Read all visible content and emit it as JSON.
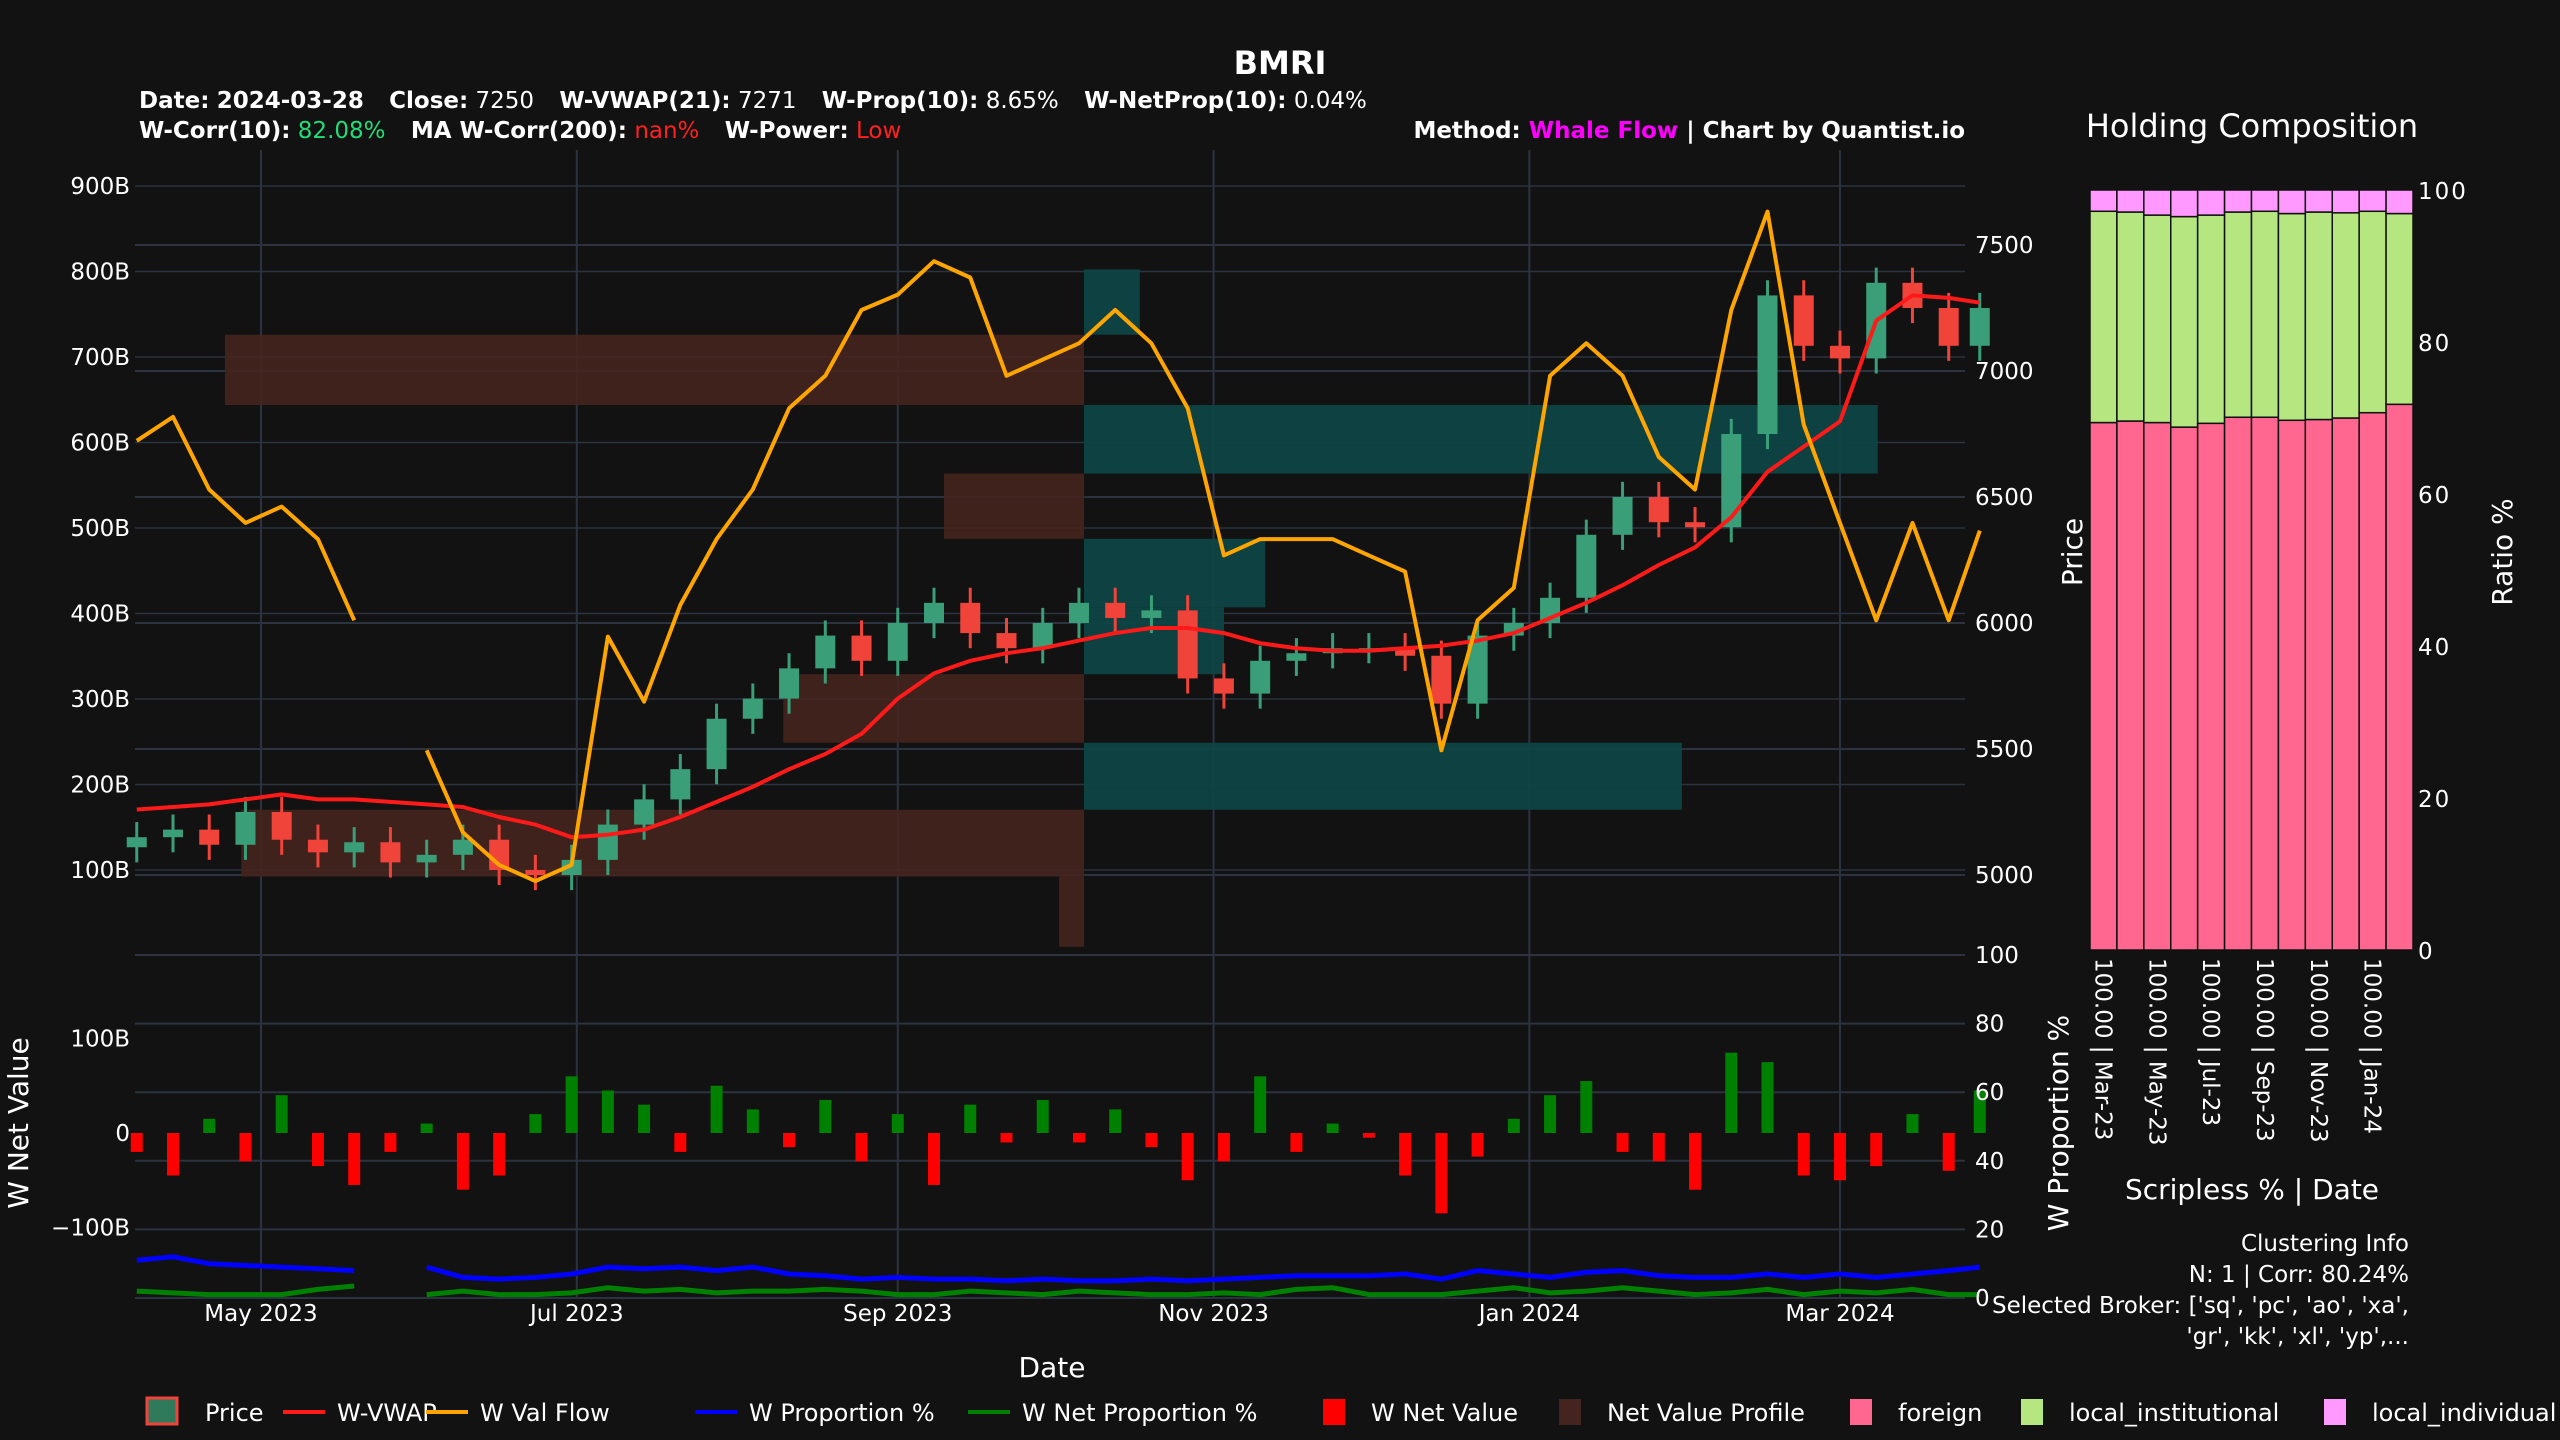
{
  "header": {
    "title": "BMRI",
    "date_label": "Date:",
    "date_value": "2024-03-28",
    "close_label": "Close:",
    "close_value": "7250",
    "vwap_label": "W-VWAP(21):",
    "vwap_value": "7271",
    "prop_label": "W-Prop(10):",
    "prop_value": "8.65%",
    "netprop_label": "W-NetProp(10):",
    "netprop_value": "0.04%",
    "corr_label": "W-Corr(10):",
    "corr_value": "82.08%",
    "macorr_label": "MA W-Corr(200):",
    "macorr_value": "nan%",
    "power_label": "W-Power:",
    "power_value": "Low",
    "method_label": "Method:",
    "method_value": "Whale Flow",
    "credit": "| Chart by Quantist.io",
    "colors": {
      "corr": "#22dd77",
      "macorr": "#ff2020",
      "power": "#ff2020",
      "method": "#ff00ff"
    }
  },
  "chart_data": [
    {
      "type": "candlestick+line",
      "panel": "price",
      "xlabel": "Date",
      "ylabel_right": "Price",
      "y_right_ticks": [
        "5000",
        "5500",
        "6000",
        "6500",
        "7000",
        "7500"
      ],
      "y_left_ticks": [
        "100B",
        "200B",
        "300B",
        "400B",
        "500B",
        "600B",
        "700B",
        "800B",
        "900B"
      ],
      "x_ticks": [
        {
          "date": "2023-05-01",
          "label": "May 2023"
        },
        {
          "date": "2023-07-01",
          "label": "Jul 2023"
        },
        {
          "date": "2023-09-01",
          "label": "Sep 2023"
        },
        {
          "date": "2023-11-01",
          "label": "Nov 2023"
        },
        {
          "date": "2024-01-01",
          "label": "Jan 2024"
        },
        {
          "date": "2024-03-01",
          "label": "Mar 2024"
        }
      ],
      "grid": true,
      "dates": [
        "2023-04-07",
        "2023-04-14",
        "2023-04-21",
        "2023-04-28",
        "2023-05-05",
        "2023-05-12",
        "2023-05-19",
        "2023-05-26",
        "2023-06-02",
        "2023-06-09",
        "2023-06-16",
        "2023-06-23",
        "2023-06-30",
        "2023-07-07",
        "2023-07-14",
        "2023-07-21",
        "2023-07-28",
        "2023-08-04",
        "2023-08-11",
        "2023-08-18",
        "2023-08-25",
        "2023-09-01",
        "2023-09-08",
        "2023-09-15",
        "2023-09-22",
        "2023-09-29",
        "2023-10-06",
        "2023-10-13",
        "2023-10-20",
        "2023-10-27",
        "2023-11-03",
        "2023-11-10",
        "2023-11-17",
        "2023-11-24",
        "2023-12-01",
        "2023-12-08",
        "2023-12-15",
        "2023-12-22",
        "2023-12-29",
        "2024-01-05",
        "2024-01-12",
        "2024-01-19",
        "2024-01-26",
        "2024-02-02",
        "2024-02-09",
        "2024-02-16",
        "2024-02-23",
        "2024-03-01",
        "2024-03-08",
        "2024-03-15",
        "2024-03-22",
        "2024-03-28"
      ],
      "series": [
        {
          "name": "Price",
          "axis": "right",
          "color_up": "#3a9e78",
          "color_down": "#f0433a",
          "close": [
            5150,
            5180,
            5120,
            5250,
            5140,
            5090,
            5130,
            5050,
            5080,
            5140,
            5020,
            5000,
            5060,
            5200,
            5300,
            5420,
            5620,
            5700,
            5820,
            5950,
            5850,
            6000,
            6080,
            5960,
            5900,
            6000,
            6080,
            6020,
            6050,
            5780,
            5720,
            5850,
            5880,
            5900,
            5900,
            5870,
            5680,
            5950,
            6000,
            6100,
            6350,
            6500,
            6400,
            6380,
            6750,
            7300,
            7100,
            7050,
            7350,
            7250,
            7100,
            7250
          ]
        },
        {
          "name": "W-VWAP",
          "axis": "right",
          "color": "#ff1a1a",
          "values": [
            5260,
            5270,
            5280,
            5300,
            5320,
            5300,
            5300,
            5290,
            5280,
            5270,
            5230,
            5200,
            5150,
            5160,
            5180,
            5230,
            5290,
            5350,
            5420,
            5480,
            5560,
            5700,
            5800,
            5850,
            5880,
            5900,
            5930,
            5960,
            5980,
            5980,
            5960,
            5920,
            5900,
            5890,
            5890,
            5900,
            5910,
            5930,
            5960,
            6020,
            6080,
            6150,
            6230,
            6300,
            6420,
            6600,
            6700,
            6800,
            7200,
            7300,
            7290,
            7271
          ]
        },
        {
          "name": "W Val Flow",
          "axis": "left",
          "unit": "B",
          "color": "#ffa500",
          "values": [
            602,
            630,
            545,
            506,
            525,
            487,
            392,
            null,
            240,
            144,
            106,
            87,
            106,
            373,
            297,
            410,
            487,
            545,
            640,
            678,
            755,
            773,
            812,
            793,
            678,
            697,
            716,
            755,
            716,
            640,
            468,
            487,
            487,
            487,
            468,
            449,
            240,
            392,
            430,
            678,
            716,
            678,
            583,
            545,
            755,
            870,
            621,
            506,
            392,
            506,
            392,
            497
          ]
        }
      ],
      "net_value_profile": {
        "name": "Net Value Profile",
        "colors": {
          "positive": "#0f4444",
          "negative": "#43241f"
        },
        "bins": [
          {
            "price_low": 7144,
            "price_high": 7403,
            "relative_value": 0.065
          },
          {
            "price_low": 6865,
            "price_high": 7144,
            "relative_value": -1.0
          },
          {
            "price_low": 6593,
            "price_high": 6865,
            "relative_value": 0.924
          },
          {
            "price_low": 6334,
            "price_high": 6593,
            "relative_value": -0.163
          },
          {
            "price_low": 6062,
            "price_high": 6334,
            "relative_value": 0.211
          },
          {
            "price_low": 5797,
            "price_high": 6062,
            "relative_value": 0.163
          },
          {
            "price_low": 5525,
            "price_high": 5797,
            "relative_value": -0.35
          },
          {
            "price_low": 5259,
            "price_high": 5525,
            "relative_value": 0.696
          },
          {
            "price_low": 4994,
            "price_high": 5259,
            "relative_value": -0.981
          },
          {
            "price_low": 4715,
            "price_high": 4994,
            "relative_value": -0.029
          }
        ]
      }
    },
    {
      "type": "bar+line",
      "panel": "flow",
      "ylabel_left": "W Net Value",
      "ylabel_right": "W Proportion %",
      "y_left_ticks": [
        {
          "v": 100,
          "label": "100B"
        },
        {
          "v": 0,
          "label": "0"
        },
        {
          "v": -100,
          "label": "−100B"
        }
      ],
      "y_right_ticks": [
        "0",
        "20",
        "40",
        "60",
        "80",
        "100"
      ],
      "series": [
        {
          "name": "W Net Value",
          "unit": "B",
          "color_pos": "#008000",
          "color_neg": "#ff0000",
          "values": [
            -20,
            -45,
            15,
            -30,
            40,
            -35,
            -55,
            -20,
            10,
            -60,
            -45,
            20,
            60,
            45,
            30,
            -20,
            50,
            25,
            -15,
            35,
            -30,
            20,
            -55,
            30,
            -10,
            35,
            -10,
            25,
            -15,
            -50,
            -30,
            60,
            -20,
            10,
            -5,
            -45,
            -85,
            -25,
            15,
            40,
            55,
            -20,
            -30,
            -60,
            85,
            75,
            -45,
            -50,
            -35,
            20,
            -40,
            45
          ]
        },
        {
          "name": "W Proportion %",
          "color": "#0000ff",
          "values": [
            11,
            12,
            10,
            9.5,
            9,
            8.5,
            8,
            null,
            9,
            6,
            5.5,
            6,
            7,
            9,
            8.5,
            9,
            8,
            9,
            7,
            6.5,
            5.5,
            6,
            5.5,
            5.5,
            5,
            5.5,
            5,
            5,
            5.5,
            5,
            5.5,
            6,
            6.5,
            6.5,
            6.5,
            7,
            5.5,
            8,
            7,
            6,
            7.5,
            8,
            6.5,
            6,
            6,
            7,
            6,
            7,
            6,
            7,
            8,
            9
          ]
        },
        {
          "name": "W Net Proportion %",
          "color": "#008000",
          "values": [
            2,
            1.5,
            1,
            1,
            1,
            2.5,
            3.5,
            null,
            1,
            2,
            1,
            1,
            1.5,
            3,
            2,
            2.5,
            1.5,
            2,
            2,
            2.5,
            2,
            1,
            1,
            2,
            1.5,
            1,
            2,
            1.5,
            1,
            1,
            1.5,
            1,
            2.5,
            3,
            1,
            1,
            1,
            2,
            3,
            1.5,
            2,
            3,
            2,
            1,
            1.5,
            2.5,
            1,
            2,
            1.5,
            2.5,
            1,
            1
          ]
        }
      ]
    },
    {
      "type": "stacked-bar",
      "panel": "holding",
      "title": "Holding Composition",
      "xlabel": "Scripless % | Date",
      "ylabel_left": "Price",
      "ylabel_right": "Ratio %",
      "ylim": [
        0,
        100
      ],
      "y_ticks": [
        "0",
        "20",
        "40",
        "60",
        "80",
        "100"
      ],
      "x_tick_labels": [
        {
          "bar": 0,
          "label": "100.00 | Mar-23"
        },
        {
          "bar": 2,
          "label": "100.00 | May-23"
        },
        {
          "bar": 4,
          "label": "100.00 | Jul-23"
        },
        {
          "bar": 6,
          "label": "100.00 | Sep-23"
        },
        {
          "bar": 8,
          "label": "100.00 | Nov-23"
        },
        {
          "bar": 10,
          "label": "100.00 | Jan-24"
        }
      ],
      "series": [
        {
          "name": "foreign",
          "color": "#ff6690",
          "values": [
            69.4,
            69.6,
            69.4,
            68.8,
            69.3,
            70.1,
            70.1,
            69.7,
            69.8,
            70.0,
            70.7,
            71.8
          ]
        },
        {
          "name": "local_institutional",
          "color": "#b5e67f",
          "values": [
            27.8,
            27.5,
            27.3,
            27.7,
            27.4,
            27.0,
            27.1,
            27.2,
            27.3,
            27.0,
            26.5,
            25.1
          ]
        },
        {
          "name": "local_individual",
          "color": "#ff99ff",
          "values": [
            2.8,
            2.9,
            3.3,
            3.5,
            3.3,
            2.9,
            2.8,
            3.1,
            2.9,
            3.0,
            2.8,
            3.1
          ]
        }
      ]
    }
  ],
  "clustering": {
    "title": "Clustering Info",
    "line1": "N: 1 | Corr: 80.24%",
    "line2": "Selected Broker: ['sq', 'pc', 'ao', 'xa',",
    "line3": "'gr', 'kk', 'xl', 'yp',..."
  },
  "legend": [
    {
      "label": "Price",
      "icon": "candlestick-icon"
    },
    {
      "label": "W-VWAP",
      "icon": "line-icon",
      "color": "#ff1a1a"
    },
    {
      "label": "W Val Flow",
      "icon": "line-icon",
      "color": "#ffa500"
    },
    {
      "label": "W Proportion %",
      "icon": "line-icon",
      "color": "#0000ff"
    },
    {
      "label": "W Net Proportion %",
      "icon": "line-icon",
      "color": "#008000"
    },
    {
      "label": "W Net Value",
      "icon": "bar-icon",
      "color": "#ff0000"
    },
    {
      "label": "Net Value Profile",
      "icon": "bar-icon",
      "color": "#43241f"
    },
    {
      "label": "foreign",
      "icon": "bar-icon",
      "color": "#ff6690"
    },
    {
      "label": "local_institutional",
      "icon": "bar-icon",
      "color": "#b5e67f"
    },
    {
      "label": "local_individual",
      "icon": "bar-icon",
      "color": "#ff99ff"
    }
  ]
}
